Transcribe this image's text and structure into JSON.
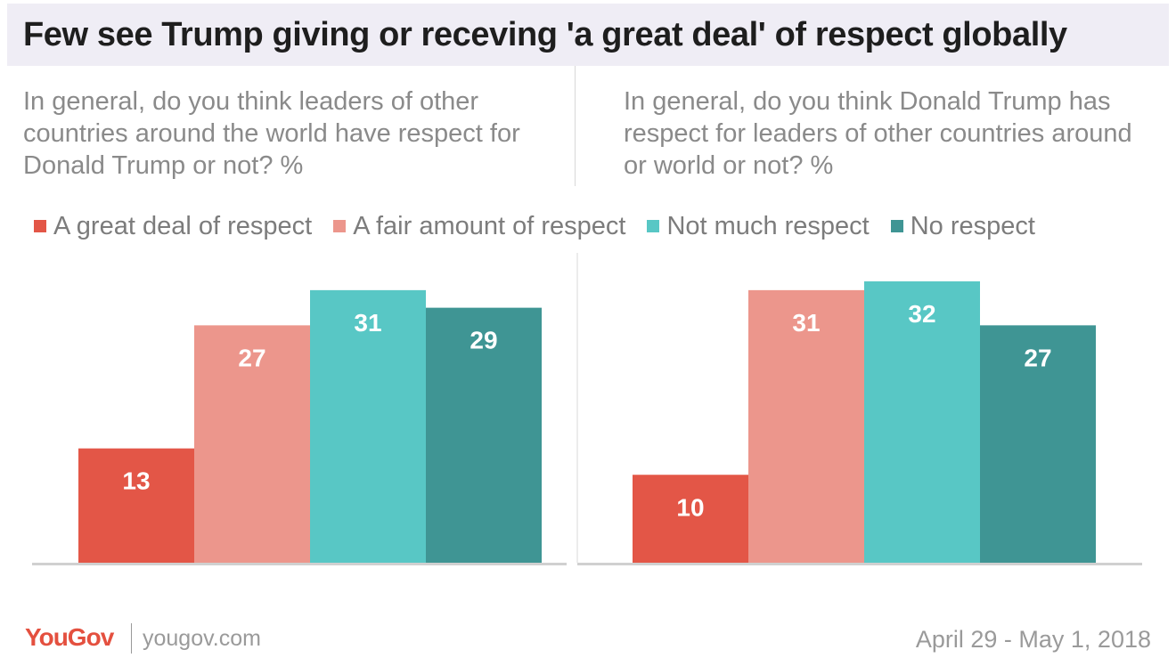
{
  "title": "Few see Trump giving or receving 'a great deal' of respect globally",
  "footer": {
    "logo": "YouGov",
    "url": "yougov.com",
    "date": "April 29 - May 1, 2018"
  },
  "colors": {
    "great_deal": "#e35647",
    "fair_amount": "#ec968c",
    "not_much": "#58c7c5",
    "no_respect": "#3f9594",
    "axis": "#d0d0d0",
    "bar_label": "#ffffff"
  },
  "legend": [
    {
      "label": "A great deal of respect",
      "color": "#e35647"
    },
    {
      "label": "A fair amount of respect",
      "color": "#ec968c"
    },
    {
      "label": "Not much respect",
      "color": "#58c7c5"
    },
    {
      "label": "No respect",
      "color": "#3f9594"
    }
  ],
  "chart_data": [
    {
      "type": "bar",
      "title": "In general, do you think leaders of other countries around the world have respect for Donald Trump or not? %",
      "categories": [
        "A great deal of respect",
        "A fair amount of respect",
        "Not much respect",
        "No respect"
      ],
      "values": [
        13,
        27,
        31,
        29
      ],
      "colors": [
        "#e35647",
        "#ec968c",
        "#58c7c5",
        "#3f9594"
      ],
      "ylim": [
        0,
        32
      ],
      "xlabel": "",
      "ylabel": "",
      "grid": false,
      "legend": "top"
    },
    {
      "type": "bar",
      "title": "In general, do you think Donald Trump has respect for leaders of other countries around or world or not? %",
      "categories": [
        "A great deal of respect",
        "A fair amount of respect",
        "Not much respect",
        "No respect"
      ],
      "values": [
        10,
        31,
        32,
        27
      ],
      "colors": [
        "#e35647",
        "#ec968c",
        "#58c7c5",
        "#3f9594"
      ],
      "ylim": [
        0,
        32
      ],
      "xlabel": "",
      "ylabel": "",
      "grid": false,
      "legend": "top"
    }
  ]
}
